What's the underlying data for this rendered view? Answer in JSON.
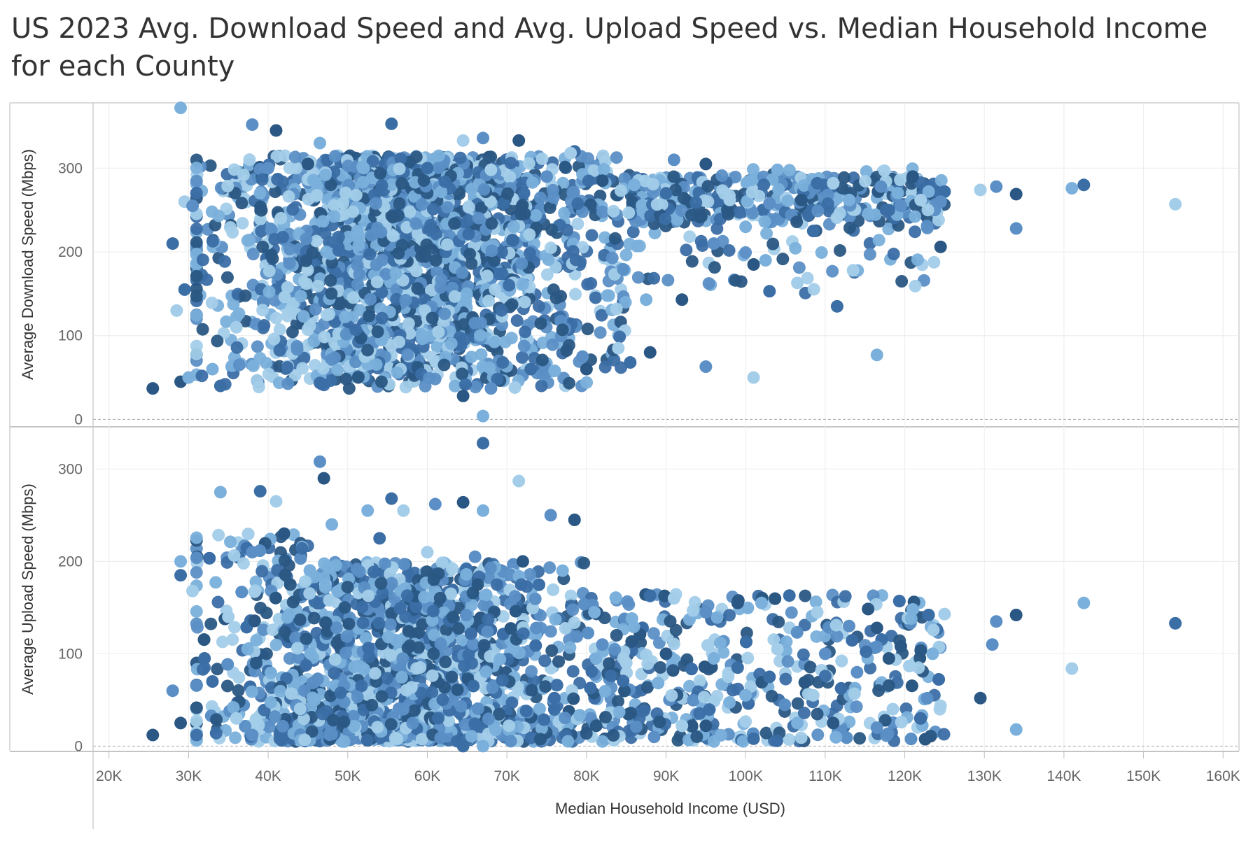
{
  "title": "US 2023 Avg. Download Speed and Avg. Upload Speed vs. Median Household Income for each County",
  "chart_data": {
    "type": "scatter",
    "x_label": "Median Household Income (USD)",
    "x_range": [
      18000,
      162000
    ],
    "x_ticks": [
      20000,
      30000,
      40000,
      50000,
      60000,
      70000,
      80000,
      90000,
      100000,
      110000,
      120000,
      130000,
      140000,
      150000,
      160000
    ],
    "x_tick_labels": [
      "20K",
      "30K",
      "40K",
      "50K",
      "60K",
      "70K",
      "80K",
      "90K",
      "100K",
      "110K",
      "120K",
      "130K",
      "140K",
      "150K",
      "160K"
    ],
    "grid": true,
    "color_palette": [
      "#2a5783",
      "#3b6ea5",
      "#5b8fc6",
      "#7ab0db",
      "#a3cde9"
    ],
    "panels": [
      {
        "y_label": "Average Download Speed (Mbps)",
        "y_range": [
          -8,
          378
        ],
        "y_ticks": [
          0,
          100,
          200,
          300
        ],
        "y_tick_labels": [
          "0",
          "100",
          "200",
          "300"
        ],
        "points": [
          [
            25500,
            37
          ],
          [
            29000,
            372
          ],
          [
            28000,
            210
          ],
          [
            29500,
            260
          ],
          [
            30500,
            255
          ],
          [
            29000,
            45
          ],
          [
            30000,
            50
          ],
          [
            29500,
            155
          ],
          [
            28500,
            130
          ],
          [
            38000,
            352
          ],
          [
            41000,
            345
          ],
          [
            46500,
            330
          ],
          [
            55500,
            353
          ],
          [
            64500,
            333
          ],
          [
            67000,
            336
          ],
          [
            71500,
            333
          ],
          [
            67000,
            4
          ],
          [
            78500,
            320
          ],
          [
            78000,
            318
          ],
          [
            91000,
            310
          ],
          [
            95000,
            305
          ],
          [
            104000,
            298
          ],
          [
            109000,
            282
          ],
          [
            111000,
            282
          ],
          [
            117000,
            278
          ],
          [
            121000,
            290
          ],
          [
            123000,
            272
          ],
          [
            125000,
            272
          ],
          [
            129500,
            274
          ],
          [
            131500,
            278
          ],
          [
            134000,
            269
          ],
          [
            141000,
            276
          ],
          [
            142500,
            280
          ],
          [
            154000,
            257
          ],
          [
            134000,
            228
          ],
          [
            124500,
            206
          ],
          [
            116500,
            77
          ],
          [
            111500,
            135
          ],
          [
            101000,
            50
          ],
          [
            96000,
            210
          ],
          [
            101000,
            185
          ],
          [
            102500,
            190
          ],
          [
            103000,
            153
          ],
          [
            106500,
            163
          ],
          [
            95000,
            63
          ],
          [
            92000,
            143
          ],
          [
            100000,
            230
          ],
          [
            108500,
            225
          ],
          [
            113500,
            178
          ],
          [
            119500,
            255
          ],
          [
            88000,
            80
          ],
          [
            87500,
            143
          ],
          [
            85500,
            68
          ],
          [
            84000,
            85
          ],
          [
            79500,
            75
          ],
          [
            80000,
            60
          ],
          [
            76000,
            58
          ],
          [
            73000,
            60
          ],
          [
            71000,
            38
          ],
          [
            68000,
            37
          ],
          [
            64500,
            28
          ],
          [
            33000,
            60
          ],
          [
            34000,
            40
          ],
          [
            36000,
            110
          ],
          [
            40000,
            300
          ],
          [
            45000,
            305
          ],
          [
            52000,
            300
          ],
          [
            60000,
            300
          ],
          [
            68000,
            298
          ],
          [
            75000,
            290
          ],
          [
            82000,
            285
          ],
          [
            86000,
            280
          ],
          [
            90000,
            270
          ],
          [
            98000,
            262
          ],
          [
            103000,
            258
          ],
          [
            107000,
            262
          ],
          [
            113000,
            262
          ],
          [
            118000,
            250
          ],
          [
            122000,
            262
          ],
          [
            124500,
            260
          ]
        ]
      },
      {
        "y_label": "Average Upload Speed (Mbps)",
        "y_range": [
          -5,
          345
        ],
        "y_ticks": [
          0,
          100,
          200,
          300
        ],
        "y_tick_labels": [
          "0",
          "100",
          "200",
          "300"
        ],
        "points": [
          [
            25500,
            12
          ],
          [
            29000,
            200
          ],
          [
            29000,
            185
          ],
          [
            30500,
            168
          ],
          [
            28000,
            60
          ],
          [
            29000,
            25
          ],
          [
            34000,
            275
          ],
          [
            39000,
            276
          ],
          [
            41000,
            265
          ],
          [
            46500,
            308
          ],
          [
            47000,
            290
          ],
          [
            52500,
            255
          ],
          [
            55500,
            268
          ],
          [
            57000,
            255
          ],
          [
            61000,
            262
          ],
          [
            64500,
            264
          ],
          [
            67000,
            255
          ],
          [
            67000,
            328
          ],
          [
            71500,
            287
          ],
          [
            75500,
            250
          ],
          [
            78500,
            245
          ],
          [
            81000,
            145
          ],
          [
            88000,
            163
          ],
          [
            91000,
            160
          ],
          [
            95000,
            145
          ],
          [
            99000,
            155
          ],
          [
            102000,
            155
          ],
          [
            105500,
            163
          ],
          [
            109000,
            145
          ],
          [
            113000,
            130
          ],
          [
            116500,
            128
          ],
          [
            121000,
            148
          ],
          [
            123000,
            142
          ],
          [
            125000,
            143
          ],
          [
            131500,
            135
          ],
          [
            134000,
            142
          ],
          [
            142500,
            155
          ],
          [
            154000,
            133
          ],
          [
            141000,
            84
          ],
          [
            131000,
            110
          ],
          [
            129500,
            52
          ],
          [
            134000,
            18
          ],
          [
            122000,
            30
          ],
          [
            118500,
            40
          ],
          [
            116500,
            20
          ],
          [
            111000,
            25
          ],
          [
            106500,
            25
          ],
          [
            101000,
            8
          ],
          [
            92000,
            22
          ],
          [
            88500,
            10
          ],
          [
            95000,
            22
          ],
          [
            100000,
            55
          ],
          [
            103000,
            75
          ],
          [
            108500,
            55
          ],
          [
            114000,
            80
          ],
          [
            119500,
            108
          ],
          [
            67000,
            0
          ],
          [
            64500,
            0
          ],
          [
            85000,
            90
          ],
          [
            82000,
            110
          ],
          [
            90000,
            100
          ],
          [
            96000,
            95
          ],
          [
            99000,
            85
          ],
          [
            104000,
            105
          ],
          [
            110000,
            100
          ],
          [
            118000,
            95
          ],
          [
            123500,
            100
          ],
          [
            32000,
            95
          ],
          [
            35000,
            140
          ],
          [
            38000,
            210
          ],
          [
            42000,
            230
          ],
          [
            48000,
            240
          ],
          [
            54000,
            225
          ],
          [
            60000,
            210
          ],
          [
            66000,
            205
          ],
          [
            72000,
            200
          ],
          [
            77000,
            190
          ],
          [
            33000,
            70
          ],
          [
            36000,
            30
          ],
          [
            38000,
            12
          ]
        ]
      }
    ]
  }
}
